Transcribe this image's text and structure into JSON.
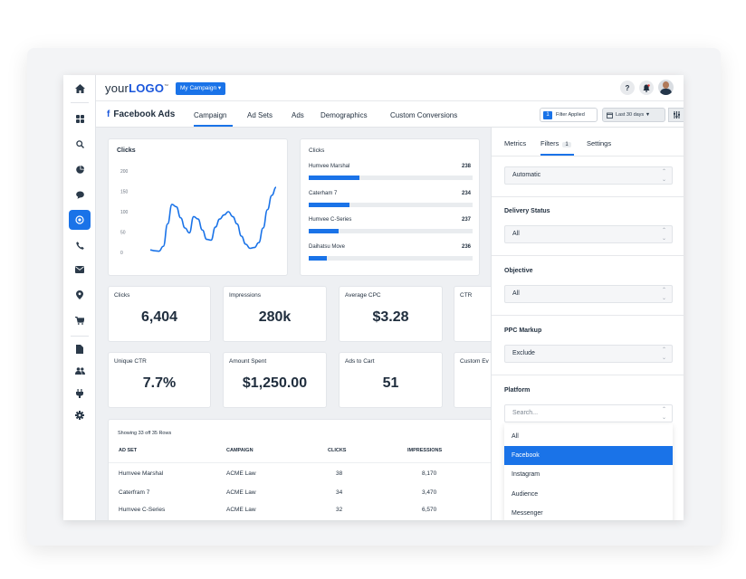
{
  "topbar": {
    "logo_prefix": "your",
    "logo_bold": "LOGO",
    "logo_tm": "™",
    "campaign_button": "My Campaign ▾",
    "help_icon": "?",
    "bell_icon": "🔔"
  },
  "nav": {
    "items": [
      "home-icon",
      "apps-icon",
      "search-icon",
      "pie-chart-icon",
      "chat-icon",
      "target-icon",
      "phone-icon",
      "mail-icon",
      "location-icon",
      "cart-icon",
      "document-icon",
      "users-icon",
      "plug-icon",
      "gear-icon"
    ],
    "active": "target-icon"
  },
  "tabbar": {
    "title_icon": "f",
    "title": "Facebook Ads",
    "tabs": [
      "Campaign",
      "Ad Sets",
      "Ads",
      "Demographics",
      "Custom Conversions"
    ],
    "active_tab": "Campaign",
    "filter_count": "1",
    "filter_label": "Filter Applied",
    "date_label": "Last 30 days ▼"
  },
  "line_chart": {
    "title": "Clicks",
    "chart_data": {
      "type": "line",
      "title": "Clicks",
      "xlabel": "",
      "ylabel": "",
      "yticks": [
        "200",
        "150",
        "100",
        "50",
        "0"
      ],
      "ylim": [
        0,
        200
      ],
      "x": [
        0,
        1,
        2,
        3,
        4,
        5,
        6,
        7,
        8,
        9,
        10,
        11,
        12,
        13,
        14,
        15,
        16,
        17,
        18,
        19,
        20,
        21,
        22,
        23,
        24,
        25,
        26,
        27,
        28,
        29
      ],
      "values": [
        6,
        4,
        3,
        15,
        70,
        118,
        112,
        85,
        60,
        48,
        88,
        82,
        55,
        32,
        30,
        62,
        82,
        92,
        100,
        88,
        70,
        40,
        20,
        10,
        12,
        24,
        60,
        105,
        140,
        160
      ]
    }
  },
  "bar_chart": {
    "title": "Clicks",
    "chart_data": {
      "type": "bar",
      "title": "Clicks",
      "categories": [
        "Humvee Marshal",
        "Caterham 7",
        "Humvee C-Series",
        "Daihatsu Move"
      ],
      "values": [
        238,
        234,
        237,
        236
      ],
      "bar_fractions": [
        0.31,
        0.25,
        0.18,
        0.11
      ]
    }
  },
  "kpis": [
    {
      "label": "Clicks",
      "value": "6,404"
    },
    {
      "label": "Impressions",
      "value": "280k"
    },
    {
      "label": "Average CPC",
      "value": "$3.28"
    },
    {
      "label": "CTR",
      "value": ""
    },
    {
      "label": "Unique CTR",
      "value": "7.7%"
    },
    {
      "label": "Amount Spent",
      "value": "$1,250.00"
    },
    {
      "label": "Ads to Cart",
      "value": "51"
    },
    {
      "label": "Custom Ev",
      "value": ""
    }
  ],
  "table": {
    "caption": "Showing 33 off 35 Rows",
    "headers": [
      "AD SET",
      "CAMPAIGN",
      "CLICKS",
      "IMPRESSIONS"
    ],
    "rows": [
      [
        "Humvee Marshal",
        "ACME Law",
        "38",
        "8,170"
      ],
      [
        "Caterfram 7",
        "ACME Law",
        "34",
        "3,470"
      ],
      [
        "Humvee C-Series",
        "ACME Law",
        "32",
        "6,570"
      ]
    ]
  },
  "panel": {
    "tabs": [
      "Metrics",
      "Filters",
      "Settings"
    ],
    "filters_badge": "1",
    "active_tab": "Filters",
    "first_select": "Automatic",
    "sections": [
      {
        "label": "Delivery Status",
        "value": "All"
      },
      {
        "label": "Objective",
        "value": "All"
      },
      {
        "label": "PPC Markup",
        "value": "Exclude"
      }
    ],
    "platform_label": "Platform",
    "search_placeholder": "Search...",
    "options": [
      "All",
      "Facebook",
      "Instagram",
      "Audience",
      "Messenger"
    ],
    "selected_option": "Facebook"
  }
}
